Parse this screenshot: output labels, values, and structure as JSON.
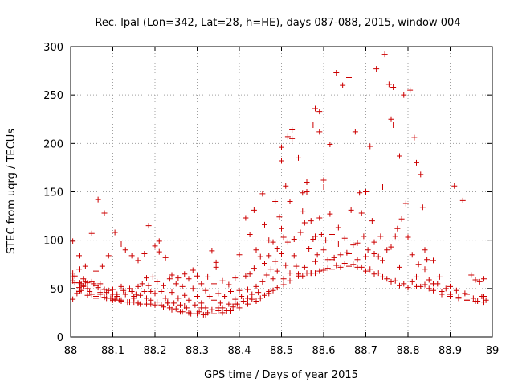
{
  "chart_data": {
    "type": "scatter",
    "title": "Rec. lpal (Lon=342, Lat=28, h=HE), days 087-088, 2015, window 004",
    "xlabel": "GPS time / Days of year 2015",
    "ylabel": "STEC from uqrg / TECUs",
    "xlim": [
      88,
      89
    ],
    "ylim": [
      0,
      300
    ],
    "xticks": [
      "88",
      "88.1",
      "88.2",
      "88.3",
      "88.4",
      "88.5",
      "88.6",
      "88.7",
      "88.8",
      "88.9",
      "89"
    ],
    "yticks": [
      "0",
      "50",
      "100",
      "150",
      "200",
      "250",
      "300"
    ],
    "grid": true,
    "marker": "+",
    "color": "#cc0000",
    "points": [
      [
        88.005,
        99
      ],
      [
        88.005,
        66
      ],
      [
        88.005,
        62
      ],
      [
        88.005,
        58
      ],
      [
        88.005,
        39
      ],
      [
        88.01,
        63
      ],
      [
        88.01,
        56
      ],
      [
        88.015,
        45
      ],
      [
        88.02,
        84
      ],
      [
        88.02,
        70
      ],
      [
        88.02,
        56
      ],
      [
        88.02,
        51
      ],
      [
        88.025,
        55
      ],
      [
        88.025,
        48
      ],
      [
        88.03,
        60
      ],
      [
        88.03,
        53
      ],
      [
        88.035,
        73
      ],
      [
        88.035,
        57
      ],
      [
        88.04,
        56
      ],
      [
        88.04,
        50
      ],
      [
        88.045,
        47
      ],
      [
        88.05,
        107
      ],
      [
        88.05,
        57
      ],
      [
        88.05,
        44
      ],
      [
        88.055,
        55
      ],
      [
        88.06,
        68
      ],
      [
        88.06,
        53
      ],
      [
        88.06,
        42
      ],
      [
        88.065,
        142
      ],
      [
        88.065,
        51
      ],
      [
        88.07,
        55
      ],
      [
        88.07,
        44
      ],
      [
        88.075,
        73
      ],
      [
        88.08,
        128
      ],
      [
        88.08,
        49
      ],
      [
        88.085,
        46
      ],
      [
        88.085,
        40
      ],
      [
        88.09,
        84
      ],
      [
        88.09,
        48
      ],
      [
        88.095,
        40
      ],
      [
        88.1,
        49
      ],
      [
        88.1,
        44
      ],
      [
        88.105,
        108
      ],
      [
        88.105,
        39
      ],
      [
        88.11,
        44
      ],
      [
        88.115,
        38
      ],
      [
        88.12,
        96
      ],
      [
        88.12,
        52
      ],
      [
        88.12,
        38
      ],
      [
        88.125,
        48
      ],
      [
        88.13,
        90
      ],
      [
        88.13,
        44
      ],
      [
        88.135,
        36
      ],
      [
        88.14,
        50
      ],
      [
        88.145,
        84
      ],
      [
        88.145,
        47
      ],
      [
        88.15,
        42
      ],
      [
        88.15,
        36
      ],
      [
        88.155,
        44
      ],
      [
        88.16,
        79
      ],
      [
        88.16,
        52
      ],
      [
        88.165,
        43
      ],
      [
        88.165,
        34
      ],
      [
        88.17,
        55
      ],
      [
        88.175,
        86
      ],
      [
        88.175,
        47
      ],
      [
        88.18,
        61
      ],
      [
        88.18,
        40
      ],
      [
        88.185,
        115
      ],
      [
        88.185,
        53
      ],
      [
        88.19,
        47
      ],
      [
        88.19,
        34
      ],
      [
        88.195,
        62
      ],
      [
        88.2,
        94
      ],
      [
        88.2,
        45
      ],
      [
        88.205,
        57
      ],
      [
        88.205,
        36
      ],
      [
        88.21,
        99
      ],
      [
        88.21,
        88
      ],
      [
        88.215,
        47
      ],
      [
        88.215,
        33
      ],
      [
        88.22,
        53
      ],
      [
        88.225,
        82
      ],
      [
        88.225,
        40
      ],
      [
        88.23,
        36
      ],
      [
        88.235,
        60
      ],
      [
        88.235,
        30
      ],
      [
        88.24,
        64
      ],
      [
        88.24,
        46
      ],
      [
        88.245,
        35
      ],
      [
        88.25,
        55
      ],
      [
        88.25,
        29
      ],
      [
        88.255,
        61
      ],
      [
        88.255,
        40
      ],
      [
        88.26,
        33
      ],
      [
        88.265,
        52
      ],
      [
        88.265,
        26
      ],
      [
        88.27,
        65
      ],
      [
        88.27,
        43
      ],
      [
        88.275,
        30
      ],
      [
        88.28,
        60
      ],
      [
        88.28,
        38
      ],
      [
        88.285,
        24
      ],
      [
        88.29,
        69
      ],
      [
        88.29,
        50
      ],
      [
        88.295,
        33
      ],
      [
        88.3,
        63
      ],
      [
        88.3,
        42
      ],
      [
        88.305,
        26
      ],
      [
        88.31,
        55
      ],
      [
        88.31,
        35
      ],
      [
        88.315,
        23
      ],
      [
        88.32,
        48
      ],
      [
        88.32,
        30
      ],
      [
        88.325,
        62
      ],
      [
        88.325,
        25
      ],
      [
        88.33,
        42
      ],
      [
        88.335,
        89
      ],
      [
        88.335,
        28
      ],
      [
        88.34,
        55
      ],
      [
        88.34,
        38
      ],
      [
        88.345,
        77
      ],
      [
        88.345,
        72
      ],
      [
        88.35,
        45
      ],
      [
        88.35,
        27
      ],
      [
        88.355,
        35
      ],
      [
        88.36,
        58
      ],
      [
        88.36,
        30
      ],
      [
        88.365,
        42
      ],
      [
        88.37,
        27
      ],
      [
        88.375,
        54
      ],
      [
        88.375,
        34
      ],
      [
        88.38,
        47
      ],
      [
        88.385,
        31
      ],
      [
        88.39,
        61
      ],
      [
        88.39,
        39
      ],
      [
        88.395,
        34
      ],
      [
        88.4,
        85
      ],
      [
        88.4,
        48
      ],
      [
        88.405,
        42
      ],
      [
        88.41,
        37
      ],
      [
        88.415,
        123
      ],
      [
        88.415,
        63
      ],
      [
        88.42,
        49
      ],
      [
        88.42,
        40
      ],
      [
        88.425,
        106
      ],
      [
        88.425,
        65
      ],
      [
        88.43,
        44
      ],
      [
        88.435,
        131
      ],
      [
        88.435,
        71
      ],
      [
        88.44,
        90
      ],
      [
        88.44,
        52
      ],
      [
        88.445,
        46
      ],
      [
        88.45,
        83
      ],
      [
        88.455,
        148
      ],
      [
        88.455,
        57
      ],
      [
        88.46,
        116
      ],
      [
        88.46,
        76
      ],
      [
        88.465,
        64
      ],
      [
        88.47,
        100
      ],
      [
        88.47,
        84
      ],
      [
        88.475,
        70
      ],
      [
        88.48,
        98
      ],
      [
        88.48,
        60
      ],
      [
        88.485,
        140
      ],
      [
        88.485,
        78
      ],
      [
        88.49,
        91
      ],
      [
        88.49,
        68
      ],
      [
        88.495,
        124
      ],
      [
        88.5,
        196
      ],
      [
        88.5,
        182
      ],
      [
        88.5,
        112
      ],
      [
        88.5,
        86
      ],
      [
        88.505,
        103
      ],
      [
        88.505,
        60
      ],
      [
        88.51,
        156
      ],
      [
        88.51,
        74
      ],
      [
        88.515,
        207
      ],
      [
        88.515,
        98
      ],
      [
        88.52,
        140
      ],
      [
        88.52,
        66
      ],
      [
        88.525,
        214
      ],
      [
        88.525,
        205
      ],
      [
        88.53,
        101
      ],
      [
        88.53,
        84
      ],
      [
        88.535,
        73
      ],
      [
        88.54,
        185
      ],
      [
        88.54,
        65
      ],
      [
        88.545,
        108
      ],
      [
        88.55,
        149
      ],
      [
        88.55,
        130
      ],
      [
        88.555,
        118
      ],
      [
        88.555,
        72
      ],
      [
        88.56,
        160
      ],
      [
        88.56,
        150
      ],
      [
        88.565,
        91
      ],
      [
        88.57,
        120
      ],
      [
        88.57,
        66
      ],
      [
        88.575,
        219
      ],
      [
        88.575,
        101
      ],
      [
        88.58,
        236
      ],
      [
        88.58,
        104
      ],
      [
        88.585,
        85
      ],
      [
        88.59,
        233
      ],
      [
        88.59,
        212
      ],
      [
        88.59,
        123
      ],
      [
        88.595,
        106
      ],
      [
        88.6,
        162
      ],
      [
        88.6,
        155
      ],
      [
        88.605,
        100
      ],
      [
        88.61,
        80
      ],
      [
        88.615,
        127
      ],
      [
        88.615,
        199
      ],
      [
        88.62,
        106
      ],
      [
        88.625,
        82
      ],
      [
        88.63,
        273
      ],
      [
        88.635,
        113
      ],
      [
        88.635,
        96
      ],
      [
        88.64,
        85
      ],
      [
        88.645,
        260
      ],
      [
        88.65,
        102
      ],
      [
        88.655,
        87
      ],
      [
        88.66,
        268
      ],
      [
        88.665,
        131
      ],
      [
        88.67,
        95
      ],
      [
        88.675,
        212
      ],
      [
        88.68,
        80
      ],
      [
        88.685,
        149
      ],
      [
        88.69,
        128
      ],
      [
        88.695,
        104
      ],
      [
        88.7,
        150
      ],
      [
        88.705,
        90
      ],
      [
        88.71,
        197
      ],
      [
        88.715,
        120
      ],
      [
        88.72,
        98
      ],
      [
        88.725,
        277
      ],
      [
        88.73,
        83
      ],
      [
        88.735,
        104
      ],
      [
        88.74,
        155
      ],
      [
        88.745,
        292
      ],
      [
        88.75,
        90
      ],
      [
        88.755,
        261
      ],
      [
        88.76,
        225
      ],
      [
        88.765,
        219
      ],
      [
        88.765,
        258
      ],
      [
        88.77,
        104
      ],
      [
        88.775,
        112
      ],
      [
        88.78,
        187
      ],
      [
        88.785,
        122
      ],
      [
        88.79,
        250
      ],
      [
        88.795,
        138
      ],
      [
        88.8,
        103
      ],
      [
        88.805,
        255
      ],
      [
        88.81,
        85
      ],
      [
        88.815,
        206
      ],
      [
        88.82,
        180
      ],
      [
        88.825,
        75
      ],
      [
        88.83,
        168
      ],
      [
        88.835,
        134
      ],
      [
        88.84,
        90
      ],
      [
        88.845,
        80
      ],
      [
        88.85,
        59
      ],
      [
        88.86,
        79
      ],
      [
        88.87,
        55
      ],
      [
        88.875,
        62
      ],
      [
        88.88,
        47
      ],
      [
        88.89,
        50
      ],
      [
        88.9,
        44
      ],
      [
        88.91,
        156
      ],
      [
        88.915,
        48
      ],
      [
        88.92,
        41
      ],
      [
        88.93,
        141
      ],
      [
        88.935,
        45
      ],
      [
        88.94,
        38
      ],
      [
        88.95,
        64
      ],
      [
        88.955,
        40
      ],
      [
        88.96,
        59
      ],
      [
        88.965,
        37
      ],
      [
        88.97,
        57
      ],
      [
        88.975,
        42
      ],
      [
        88.98,
        60
      ],
      [
        88.985,
        38
      ],
      [
        88.505,
        54
      ],
      [
        88.52,
        58
      ],
      [
        88.54,
        63
      ],
      [
        88.56,
        66
      ],
      [
        88.58,
        66
      ],
      [
        88.6,
        69
      ],
      [
        88.62,
        70
      ],
      [
        88.64,
        72
      ],
      [
        88.66,
        73
      ],
      [
        88.68,
        72
      ],
      [
        88.7,
        68
      ],
      [
        88.72,
        65
      ],
      [
        88.74,
        62
      ],
      [
        88.76,
        57
      ],
      [
        88.78,
        53
      ],
      [
        88.8,
        51
      ],
      [
        88.82,
        52
      ],
      [
        88.84,
        54
      ],
      [
        88.86,
        48
      ],
      [
        88.88,
        44
      ],
      [
        88.9,
        42
      ],
      [
        88.92,
        40
      ],
      [
        88.94,
        38
      ],
      [
        88.96,
        37
      ],
      [
        88.98,
        36
      ],
      [
        88.45,
        40
      ],
      [
        88.46,
        43
      ],
      [
        88.47,
        45
      ],
      [
        88.48,
        48
      ],
      [
        88.49,
        51
      ],
      [
        88.58,
        78
      ],
      [
        88.62,
        80
      ],
      [
        88.66,
        86
      ],
      [
        88.7,
        83
      ],
      [
        88.74,
        79
      ],
      [
        88.78,
        72
      ],
      [
        88.82,
        62
      ],
      [
        88.86,
        55
      ],
      [
        88.9,
        52
      ],
      [
        88.94,
        44
      ],
      [
        88.98,
        42
      ],
      [
        88.6,
        90
      ],
      [
        88.68,
        97
      ],
      [
        88.72,
        86
      ],
      [
        88.76,
        93
      ],
      [
        88.84,
        70
      ],
      [
        88.55,
        63
      ],
      [
        88.57,
        66
      ],
      [
        88.59,
        68
      ],
      [
        88.61,
        71
      ],
      [
        88.63,
        74
      ],
      [
        88.65,
        76
      ],
      [
        88.67,
        75
      ],
      [
        88.69,
        72
      ],
      [
        88.71,
        70
      ],
      [
        88.73,
        66
      ],
      [
        88.75,
        60
      ],
      [
        88.77,
        58
      ],
      [
        88.79,
        55
      ],
      [
        88.81,
        57
      ],
      [
        88.83,
        52
      ],
      [
        88.85,
        50
      ],
      [
        88.02,
        47
      ],
      [
        88.04,
        43
      ],
      [
        88.06,
        40
      ],
      [
        88.08,
        41
      ],
      [
        88.1,
        38
      ],
      [
        88.12,
        37
      ],
      [
        88.14,
        36
      ],
      [
        88.16,
        35
      ],
      [
        88.18,
        34
      ],
      [
        88.2,
        33
      ],
      [
        88.22,
        31
      ],
      [
        88.24,
        28
      ],
      [
        88.26,
        26
      ],
      [
        88.28,
        25
      ],
      [
        88.3,
        24
      ],
      [
        88.32,
        23
      ],
      [
        88.34,
        24
      ],
      [
        88.36,
        25
      ],
      [
        88.38,
        27
      ],
      [
        88.4,
        30
      ],
      [
        88.42,
        34
      ],
      [
        88.44,
        37
      ],
      [
        88.03,
        52
      ],
      [
        88.07,
        46
      ],
      [
        88.11,
        42
      ],
      [
        88.15,
        40
      ],
      [
        88.19,
        38
      ],
      [
        88.23,
        35
      ],
      [
        88.27,
        32
      ],
      [
        88.31,
        30
      ],
      [
        88.35,
        30
      ],
      [
        88.39,
        34
      ],
      [
        88.43,
        39
      ],
      [
        88.47,
        47
      ]
    ]
  }
}
